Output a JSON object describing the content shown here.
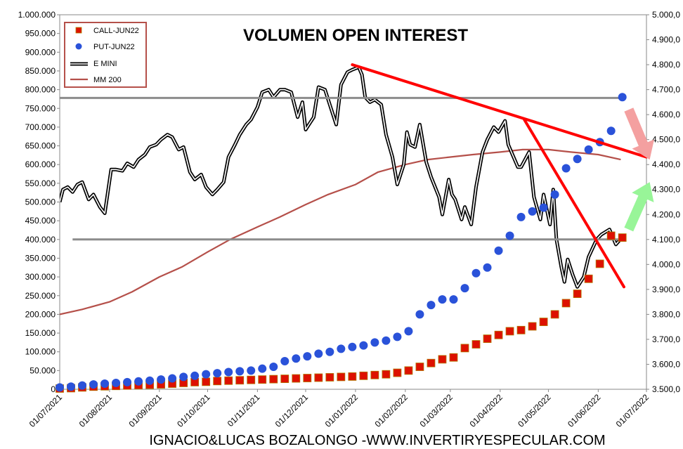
{
  "chart_data": {
    "type": "line",
    "title": "VOLUMEN OPEN INTEREST",
    "footer": "IGNACIO&LUCAS BOZALONGO -WWW.INVERTIRYESPECULAR.COM",
    "x_ticks": [
      "01/07/2021",
      "01/08/2021",
      "01/09/2021",
      "01/10/2021",
      "01/11/2021",
      "01/12/2021",
      "01/01/2022",
      "01/02/2022",
      "01/03/2022",
      "01/04/2022",
      "01/05/2022",
      "01/06/2022",
      "01/07/2022"
    ],
    "xlim": [
      "01/07/2021",
      "01/07/2022"
    ],
    "y_left": {
      "ticks": [
        "0",
        "50.000",
        "100.000",
        "150.000",
        "200.000",
        "250.000",
        "300.000",
        "350.000",
        "400.000",
        "450.000",
        "500.000",
        "550.000",
        "600.000",
        "650.000",
        "700.000",
        "750.000",
        "800.000",
        "850.000",
        "900.000",
        "950.000",
        "1.000.000"
      ],
      "ylim": [
        0,
        1000000
      ]
    },
    "y_right": {
      "ticks": [
        "3.500,0",
        "3.600,0",
        "3.700,0",
        "3.800,0",
        "3.900,0",
        "4.000,0",
        "4.100,0",
        "4.200,0",
        "4.300,0",
        "4.400,0",
        "4.500,0",
        "4.600,0",
        "4.700,0",
        "4.800,0",
        "4.900,0",
        "5.000,0"
      ],
      "ylim": [
        3500,
        5000
      ]
    },
    "legend": {
      "position": "top-left",
      "entries": [
        "CALL-JUN22",
        "PUT-JUN22",
        "E MINI",
        "MM 200"
      ]
    },
    "colors": {
      "call": "#dd1100",
      "put": "#2a52d9",
      "emini": "#000000",
      "mm200": "#b5504a",
      "trend": "#ff0000",
      "level": "#8c8c8c",
      "arrow_down": "#f4a0a0",
      "arrow_up": "#98f598"
    },
    "series": [
      {
        "name": "CALL-JUN22",
        "axis": "left",
        "marker": "square",
        "points": [
          [
            "2021-07-01",
            2000
          ],
          [
            "2021-07-08",
            3000
          ],
          [
            "2021-07-15",
            5000
          ],
          [
            "2021-07-22",
            7000
          ],
          [
            "2021-07-29",
            8000
          ],
          [
            "2021-08-05",
            9000
          ],
          [
            "2021-08-12",
            10000
          ],
          [
            "2021-08-19",
            11000
          ],
          [
            "2021-08-26",
            12000
          ],
          [
            "2021-09-02",
            13000
          ],
          [
            "2021-09-09",
            15000
          ],
          [
            "2021-09-16",
            17000
          ],
          [
            "2021-09-23",
            19000
          ],
          [
            "2021-09-30",
            20000
          ],
          [
            "2021-10-07",
            22000
          ],
          [
            "2021-10-14",
            23000
          ],
          [
            "2021-10-21",
            24000
          ],
          [
            "2021-10-28",
            25000
          ],
          [
            "2021-11-04",
            26000
          ],
          [
            "2021-11-11",
            27000
          ],
          [
            "2021-11-18",
            28000
          ],
          [
            "2021-11-25",
            29000
          ],
          [
            "2021-12-02",
            30000
          ],
          [
            "2021-12-09",
            31000
          ],
          [
            "2021-12-16",
            32000
          ],
          [
            "2021-12-23",
            33000
          ],
          [
            "2021-12-30",
            34000
          ],
          [
            "2022-01-06",
            36000
          ],
          [
            "2022-01-13",
            38000
          ],
          [
            "2022-01-20",
            40000
          ],
          [
            "2022-01-27",
            44000
          ],
          [
            "2022-02-03",
            50000
          ],
          [
            "2022-02-10",
            60000
          ],
          [
            "2022-02-17",
            70000
          ],
          [
            "2022-02-24",
            80000
          ],
          [
            "2022-03-03",
            85000
          ],
          [
            "2022-03-10",
            110000
          ],
          [
            "2022-03-17",
            120000
          ],
          [
            "2022-03-24",
            135000
          ],
          [
            "2022-03-31",
            145000
          ],
          [
            "2022-04-07",
            155000
          ],
          [
            "2022-04-14",
            158000
          ],
          [
            "2022-04-21",
            168000
          ],
          [
            "2022-04-28",
            180000
          ],
          [
            "2022-05-05",
            200000
          ],
          [
            "2022-05-12",
            230000
          ],
          [
            "2022-05-19",
            255000
          ],
          [
            "2022-05-26",
            295000
          ],
          [
            "2022-06-02",
            335000
          ],
          [
            "2022-06-09",
            410000
          ],
          [
            "2022-06-16",
            405000
          ]
        ]
      },
      {
        "name": "PUT-JUN22",
        "axis": "left",
        "marker": "circle",
        "points": [
          [
            "2021-07-01",
            5000
          ],
          [
            "2021-07-08",
            7000
          ],
          [
            "2021-07-15",
            10000
          ],
          [
            "2021-07-22",
            13000
          ],
          [
            "2021-07-29",
            15000
          ],
          [
            "2021-08-05",
            17000
          ],
          [
            "2021-08-12",
            19000
          ],
          [
            "2021-08-19",
            21000
          ],
          [
            "2021-08-26",
            23000
          ],
          [
            "2021-09-02",
            26000
          ],
          [
            "2021-09-09",
            29000
          ],
          [
            "2021-09-16",
            33000
          ],
          [
            "2021-09-23",
            36000
          ],
          [
            "2021-09-30",
            40000
          ],
          [
            "2021-10-07",
            43000
          ],
          [
            "2021-10-14",
            46000
          ],
          [
            "2021-10-21",
            48000
          ],
          [
            "2021-10-28",
            50000
          ],
          [
            "2021-11-04",
            55000
          ],
          [
            "2021-11-11",
            60000
          ],
          [
            "2021-11-18",
            75000
          ],
          [
            "2021-11-25",
            82000
          ],
          [
            "2021-12-02",
            88000
          ],
          [
            "2021-12-09",
            95000
          ],
          [
            "2021-12-16",
            100000
          ],
          [
            "2021-12-23",
            108000
          ],
          [
            "2021-12-30",
            113000
          ],
          [
            "2022-01-06",
            117000
          ],
          [
            "2022-01-13",
            125000
          ],
          [
            "2022-01-20",
            130000
          ],
          [
            "2022-01-27",
            140000
          ],
          [
            "2022-02-03",
            155000
          ],
          [
            "2022-02-10",
            200000
          ],
          [
            "2022-02-17",
            225000
          ],
          [
            "2022-02-24",
            240000
          ],
          [
            "2022-03-03",
            240000
          ],
          [
            "2022-03-10",
            270000
          ],
          [
            "2022-03-17",
            310000
          ],
          [
            "2022-03-24",
            325000
          ],
          [
            "2022-03-31",
            370000
          ],
          [
            "2022-04-07",
            410000
          ],
          [
            "2022-04-14",
            460000
          ],
          [
            "2022-04-21",
            475000
          ],
          [
            "2022-04-28",
            485000
          ],
          [
            "2022-05-05",
            520000
          ],
          [
            "2022-05-12",
            590000
          ],
          [
            "2022-05-19",
            615000
          ],
          [
            "2022-05-26",
            640000
          ],
          [
            "2022-06-02",
            660000
          ],
          [
            "2022-06-09",
            690000
          ],
          [
            "2022-06-16",
            780000
          ]
        ]
      },
      {
        "name": "E MINI",
        "axis": "right",
        "points": [
          [
            "2021-07-01",
            4250
          ],
          [
            "2021-07-03",
            4300
          ],
          [
            "2021-07-06",
            4310
          ],
          [
            "2021-07-09",
            4290
          ],
          [
            "2021-07-12",
            4320
          ],
          [
            "2021-07-15",
            4330
          ],
          [
            "2021-07-19",
            4260
          ],
          [
            "2021-07-22",
            4280
          ],
          [
            "2021-07-26",
            4230
          ],
          [
            "2021-07-29",
            4205
          ],
          [
            "2021-08-02",
            4380
          ],
          [
            "2021-08-05",
            4380
          ],
          [
            "2021-08-09",
            4375
          ],
          [
            "2021-08-12",
            4405
          ],
          [
            "2021-08-16",
            4390
          ],
          [
            "2021-08-19",
            4420
          ],
          [
            "2021-08-23",
            4440
          ],
          [
            "2021-08-26",
            4470
          ],
          [
            "2021-08-30",
            4480
          ],
          [
            "2021-09-02",
            4500
          ],
          [
            "2021-09-06",
            4520
          ],
          [
            "2021-09-09",
            4510
          ],
          [
            "2021-09-13",
            4460
          ],
          [
            "2021-09-16",
            4470
          ],
          [
            "2021-09-20",
            4370
          ],
          [
            "2021-09-23",
            4340
          ],
          [
            "2021-09-27",
            4360
          ],
          [
            "2021-09-30",
            4310
          ],
          [
            "2021-10-04",
            4280
          ],
          [
            "2021-10-07",
            4300
          ],
          [
            "2021-10-11",
            4330
          ],
          [
            "2021-10-14",
            4430
          ],
          [
            "2021-10-18",
            4480
          ],
          [
            "2021-10-21",
            4520
          ],
          [
            "2021-10-25",
            4560
          ],
          [
            "2021-10-28",
            4580
          ],
          [
            "2021-11-01",
            4630
          ],
          [
            "2021-11-04",
            4690
          ],
          [
            "2021-11-08",
            4700
          ],
          [
            "2021-11-11",
            4670
          ],
          [
            "2021-11-15",
            4700
          ],
          [
            "2021-11-18",
            4700
          ],
          [
            "2021-11-22",
            4690
          ],
          [
            "2021-11-26",
            4590
          ],
          [
            "2021-11-29",
            4650
          ],
          [
            "2021-12-01",
            4540
          ],
          [
            "2021-12-03",
            4560
          ],
          [
            "2021-12-06",
            4590
          ],
          [
            "2021-12-09",
            4710
          ],
          [
            "2021-12-13",
            4700
          ],
          [
            "2021-12-16",
            4640
          ],
          [
            "2021-12-20",
            4560
          ],
          [
            "2021-12-23",
            4720
          ],
          [
            "2021-12-27",
            4770
          ],
          [
            "2021-12-30",
            4780
          ],
          [
            "2022-01-03",
            4790
          ],
          [
            "2022-01-05",
            4760
          ],
          [
            "2022-01-07",
            4670
          ],
          [
            "2022-01-10",
            4650
          ],
          [
            "2022-01-13",
            4660
          ],
          [
            "2022-01-17",
            4640
          ],
          [
            "2022-01-20",
            4520
          ],
          [
            "2022-01-24",
            4430
          ],
          [
            "2022-01-27",
            4320
          ],
          [
            "2022-01-31",
            4400
          ],
          [
            "2022-02-02",
            4530
          ],
          [
            "2022-02-04",
            4480
          ],
          [
            "2022-02-07",
            4470
          ],
          [
            "2022-02-10",
            4560
          ],
          [
            "2022-02-14",
            4410
          ],
          [
            "2022-02-17",
            4350
          ],
          [
            "2022-02-22",
            4270
          ],
          [
            "2022-02-24",
            4200
          ],
          [
            "2022-02-28",
            4340
          ],
          [
            "2022-03-02",
            4280
          ],
          [
            "2022-03-04",
            4260
          ],
          [
            "2022-03-08",
            4180
          ],
          [
            "2022-03-10",
            4230
          ],
          [
            "2022-03-14",
            4160
          ],
          [
            "2022-03-17",
            4310
          ],
          [
            "2022-03-21",
            4450
          ],
          [
            "2022-03-24",
            4500
          ],
          [
            "2022-03-28",
            4550
          ],
          [
            "2022-03-31",
            4530
          ],
          [
            "2022-04-04",
            4575
          ],
          [
            "2022-04-06",
            4480
          ],
          [
            "2022-04-08",
            4450
          ],
          [
            "2022-04-12",
            4390
          ],
          [
            "2022-04-14",
            4390
          ],
          [
            "2022-04-19",
            4450
          ],
          [
            "2022-04-22",
            4270
          ],
          [
            "2022-04-26",
            4180
          ],
          [
            "2022-04-28",
            4280
          ],
          [
            "2022-05-02",
            4160
          ],
          [
            "2022-05-04",
            4300
          ],
          [
            "2022-05-06",
            4100
          ],
          [
            "2022-05-09",
            3990
          ],
          [
            "2022-05-11",
            3930
          ],
          [
            "2022-05-13",
            4020
          ],
          [
            "2022-05-16",
            3960
          ],
          [
            "2022-05-19",
            3910
          ],
          [
            "2022-05-23",
            3950
          ],
          [
            "2022-05-26",
            4030
          ],
          [
            "2022-05-31",
            4100
          ],
          [
            "2022-06-03",
            4120
          ],
          [
            "2022-06-08",
            4140
          ],
          [
            "2022-06-12",
            4080
          ],
          [
            "2022-06-16",
            4110
          ]
        ]
      },
      {
        "name": "MM 200",
        "axis": "right",
        "points": [
          [
            "2021-07-01",
            3800
          ],
          [
            "2021-07-15",
            3820
          ],
          [
            "2021-08-01",
            3850
          ],
          [
            "2021-08-15",
            3890
          ],
          [
            "2021-09-01",
            3950
          ],
          [
            "2021-09-15",
            3990
          ],
          [
            "2021-10-01",
            4050
          ],
          [
            "2021-10-15",
            4100
          ],
          [
            "2021-11-01",
            4150
          ],
          [
            "2021-11-15",
            4190
          ],
          [
            "2021-12-01",
            4240
          ],
          [
            "2021-12-15",
            4280
          ],
          [
            "2022-01-01",
            4320
          ],
          [
            "2022-01-15",
            4370
          ],
          [
            "2022-02-01",
            4400
          ],
          [
            "2022-02-15",
            4420
          ],
          [
            "2022-03-01",
            4430
          ],
          [
            "2022-03-15",
            4440
          ],
          [
            "2022-04-01",
            4450
          ],
          [
            "2022-04-15",
            4460
          ],
          [
            "2022-05-01",
            4460
          ],
          [
            "2022-05-15",
            4450
          ],
          [
            "2022-06-01",
            4440
          ],
          [
            "2022-06-15",
            4420
          ]
        ]
      }
    ],
    "annotations": {
      "horizontal_levels": [
        {
          "axis": "left",
          "value": 778000,
          "from": "2021-07-01",
          "to": "2022-06-16"
        },
        {
          "axis": "left",
          "value": 400000,
          "from": "2021-07-09",
          "to": "2022-06-18"
        }
      ],
      "trend_lines": [
        {
          "from": [
            "2021-12-30",
            4800
          ],
          "to": [
            "2022-07-01",
            4430
          ]
        },
        {
          "from": [
            "2022-04-16",
            4580
          ],
          "to": [
            "2022-06-17",
            3910
          ]
        }
      ],
      "arrows": [
        {
          "direction": "down",
          "from": [
            "2022-06-20",
            4620
          ],
          "to": [
            "2022-07-03",
            4420
          ]
        },
        {
          "direction": "up",
          "from": [
            "2022-06-20",
            4140
          ],
          "to": [
            "2022-07-03",
            4330
          ]
        }
      ]
    }
  }
}
